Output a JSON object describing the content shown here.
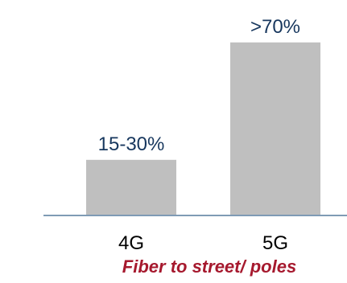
{
  "chart_data": {
    "type": "bar",
    "categories": [
      "4G",
      "5G"
    ],
    "values": [
      22.5,
      70
    ],
    "value_labels": [
      "15-30%",
      ">70%"
    ],
    "caption": "Fiber to street/ poles",
    "ylim": [
      0,
      80
    ],
    "grid": false,
    "legend": "none",
    "colors": {
      "bar": "#bfbfbf",
      "axis": "#7f9bb5",
      "value_label": "#17375e",
      "category_label": "#000000",
      "caption": "#a6192e"
    }
  }
}
